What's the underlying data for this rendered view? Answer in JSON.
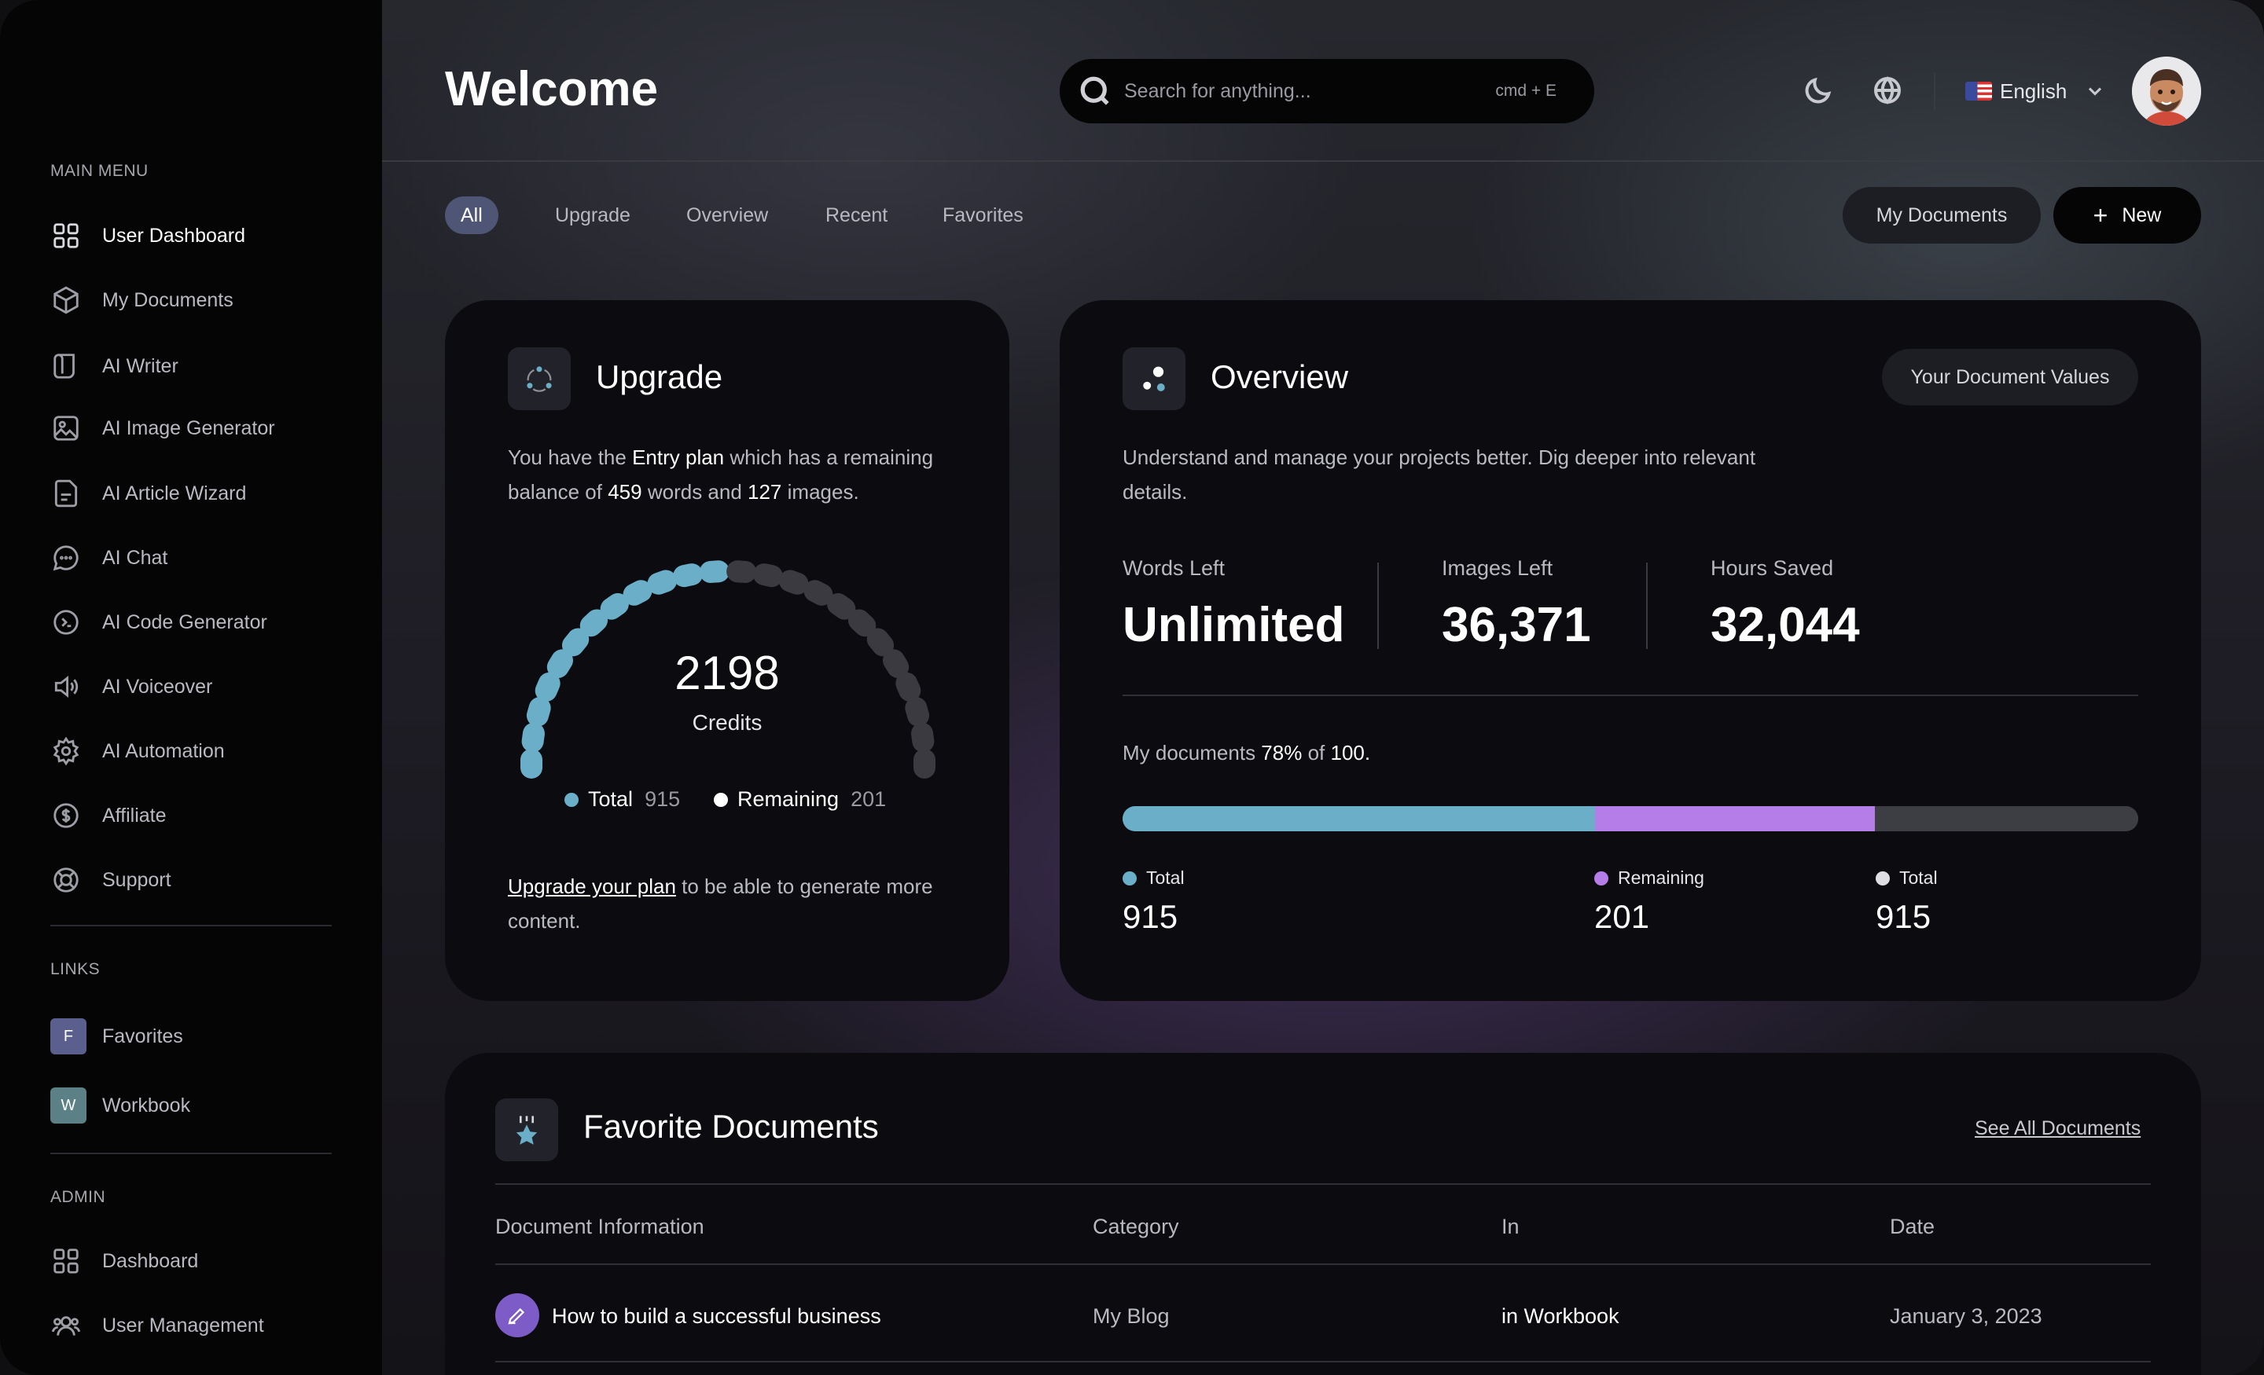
{
  "sidebar": {
    "main_menu_title": "MAIN MENU",
    "main_menu": [
      {
        "label": "User Dashboard",
        "icon": "grid-icon"
      },
      {
        "label": "My Documents",
        "icon": "cube-icon"
      },
      {
        "label": "AI Writer",
        "icon": "writer-icon"
      },
      {
        "label": "AI Image Generator",
        "icon": "image-icon"
      },
      {
        "label": "AI Article Wizard",
        "icon": "article-icon"
      },
      {
        "label": "AI Chat",
        "icon": "chat-icon"
      },
      {
        "label": "AI Code Generator",
        "icon": "code-icon"
      },
      {
        "label": "AI Voiceover",
        "icon": "speaker-icon"
      },
      {
        "label": "AI Automation",
        "icon": "gear-icon"
      },
      {
        "label": "Affiliate",
        "icon": "dollar-icon"
      },
      {
        "label": "Support",
        "icon": "lifebuoy-icon"
      }
    ],
    "links_title": "LINKS",
    "links": [
      {
        "badge": "F",
        "label": "Favorites",
        "color": "#5b5f8e"
      },
      {
        "badge": "W",
        "label": "Workbook",
        "color": "#5b8085"
      }
    ],
    "admin_title": "ADMIN",
    "admin": [
      {
        "label": "Dashboard",
        "icon": "grid-icon"
      },
      {
        "label": "User Management",
        "icon": "users-icon"
      }
    ]
  },
  "header": {
    "title": "Welcome",
    "search_placeholder": "Search for anything...",
    "search_shortcut": "cmd + E",
    "language": "English"
  },
  "tabs": [
    "All",
    "Upgrade",
    "Overview",
    "Recent",
    "Favorites"
  ],
  "actions": {
    "my_documents": "My Documents",
    "new": "New"
  },
  "upgrade": {
    "title": "Upgrade",
    "text_1": "You have the ",
    "plan": "Entry plan",
    "text_2": " which has a remaining",
    "text_3": "balance of ",
    "words": "459",
    "text_4": " words and ",
    "images": "127",
    "text_5": " images.",
    "credits_value": "2198",
    "credits_label": "Credits",
    "gauge_filled_fraction": 0.5,
    "legend_total_label": "Total",
    "legend_total_value": "915",
    "legend_remaining_label": "Remaining",
    "legend_remaining_value": "201",
    "footer_link": "Upgrade your plan",
    "footer_text_1": " to be able to generate more",
    "footer_text_2": "content."
  },
  "overview": {
    "title": "Overview",
    "badge": "Your Document Values",
    "text_1": "Understand and manage your projects better. Dig deeper into relevant",
    "text_2": "details.",
    "stats": [
      {
        "label": "Words Left",
        "value": "Unlimited"
      },
      {
        "label": "Images Left",
        "value": "36,371"
      },
      {
        "label": "Hours Saved",
        "value": "32,044"
      }
    ],
    "docs_text_1": "My documents ",
    "docs_percent": "78%",
    "docs_text_2": " of ",
    "docs_total": "100.",
    "bar": [
      {
        "fraction": 0.465,
        "color": "#6aaec8"
      },
      {
        "fraction": 0.276,
        "color": "#b57de8"
      },
      {
        "fraction": 0.259,
        "color": "#3d3d44"
      }
    ],
    "legend": [
      {
        "label": "Total",
        "value": "915",
        "color": "#6aaec8"
      },
      {
        "label": "Remaining",
        "value": "201",
        "color": "#b57de8"
      },
      {
        "label": "Total",
        "value": "915",
        "color": "#dedee3"
      }
    ]
  },
  "favorites": {
    "title": "Favorite Documents",
    "see_all": "See All Documents",
    "columns": [
      "Document Information",
      "Category",
      "In",
      "Date"
    ],
    "rows": [
      {
        "name": "How to build a successful business",
        "category": "My Blog",
        "in": "in Workbook",
        "date": "January 3, 2023"
      }
    ]
  },
  "colors": {
    "accent_blue": "#6aaec8",
    "accent_purple": "#b57de8",
    "active_tab": "#4f5675"
  }
}
